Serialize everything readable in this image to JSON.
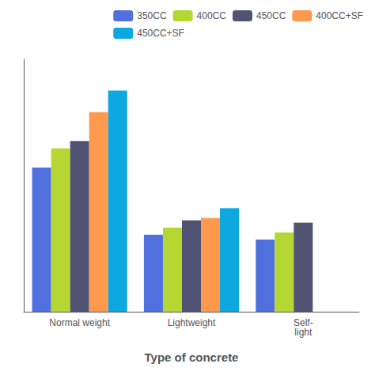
{
  "chart_data": {
    "type": "bar",
    "xlabel": "Type of concrete",
    "categories": [
      "Normal weight",
      "Lightweight",
      "Self-\nlight"
    ],
    "series": [
      {
        "name": "350CC",
        "values": [
          6.0,
          3.2,
          3.0
        ]
      },
      {
        "name": "400CC",
        "values": [
          6.8,
          3.5,
          3.3
        ]
      },
      {
        "name": "450CC",
        "values": [
          7.1,
          3.8,
          3.7
        ]
      },
      {
        "name": "400CC+SF",
        "values": [
          8.3,
          3.9,
          0.0
        ]
      },
      {
        "name": "450CC+SF",
        "values": [
          9.2,
          4.3,
          0.0
        ]
      }
    ],
    "ylim": [
      0,
      10.5
    ],
    "grid": false,
    "legend": "upper right",
    "tick_labels": "x"
  }
}
